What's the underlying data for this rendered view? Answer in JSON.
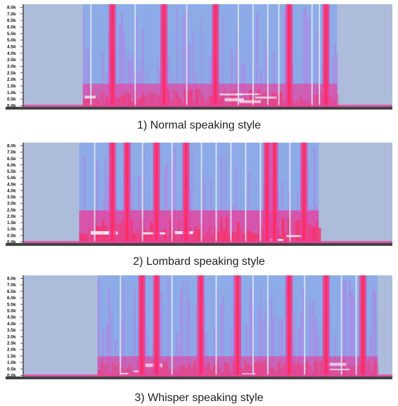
{
  "chart_data": [
    {
      "type": "heatmap",
      "title": "1) Normal speaking style",
      "y_ticks": [
        "8.0k",
        "7.0k",
        "6.5k",
        "6.0k",
        "5.5k",
        "5.0k",
        "4.5k",
        "4.0k",
        "3.5k",
        "3.0k",
        "2.5k",
        "2.0k",
        "1.5k",
        "1.0k",
        "0.5k",
        "0.0k"
      ],
      "ylim": [
        0,
        8000
      ],
      "y_unit": "Hz",
      "time_range": [
        0,
        1
      ],
      "speech_span": [
        0.16,
        0.85
      ],
      "bursts": [
        0.24,
        0.38,
        0.52,
        0.72,
        0.82
      ],
      "gaps": [
        0.18,
        0.3,
        0.44,
        0.58,
        0.62,
        0.66,
        0.69,
        0.78,
        0.8
      ],
      "low_band_height": 1800,
      "intensity": 0.55,
      "colormap": [
        "#aebcdc",
        "#8aa8e8",
        "#b37fe6",
        "#e8409c",
        "#ff2a5a",
        "#ffffff"
      ]
    },
    {
      "type": "heatmap",
      "title": "2) Lombard speaking style",
      "y_ticks": [
        "8.0k",
        "7.0k",
        "6.5k",
        "6.0k",
        "5.5k",
        "5.0k",
        "4.5k",
        "4.0k",
        "3.5k",
        "3.0k",
        "2.5k",
        "2.0k",
        "1.5k",
        "1.0k",
        "0.5k",
        "0.0k"
      ],
      "ylim": [
        0,
        8000
      ],
      "y_unit": "Hz",
      "time_range": [
        0,
        1
      ],
      "speech_span": [
        0.15,
        0.8
      ],
      "bursts": [
        0.24,
        0.28,
        0.36,
        0.44,
        0.66,
        0.68,
        0.76
      ],
      "gaps": [
        0.19,
        0.32,
        0.4,
        0.48,
        0.52,
        0.56,
        0.6,
        0.64,
        0.72
      ],
      "low_band_height": 2600,
      "intensity": 0.85,
      "colormap": [
        "#aebcdc",
        "#8aa8e8",
        "#b37fe6",
        "#e8409c",
        "#ff2a5a",
        "#ffffff"
      ]
    },
    {
      "type": "heatmap",
      "title": "3) Whisper speaking style",
      "y_ticks": [
        "8.0k",
        "7.0k",
        "6.5k",
        "6.0k",
        "5.5k",
        "5.0k",
        "4.5k",
        "4.0k",
        "3.5k",
        "3.0k",
        "2.5k",
        "2.0k",
        "1.5k",
        "1.0k",
        "0.5k",
        "0.0k"
      ],
      "ylim": [
        0,
        8000
      ],
      "y_unit": "Hz",
      "time_range": [
        0,
        1
      ],
      "speech_span": [
        0.2,
        0.96
      ],
      "bursts": [
        0.32,
        0.36,
        0.48,
        0.58,
        0.72,
        0.82,
        0.92
      ],
      "gaps": [
        0.26,
        0.4,
        0.52,
        0.62,
        0.66,
        0.76,
        0.86,
        0.9
      ],
      "low_band_height": 1600,
      "intensity": 0.45,
      "colormap": [
        "#aebcdc",
        "#8aa8e8",
        "#b37fe6",
        "#e8409c",
        "#ff2a5a",
        "#ffffff"
      ]
    }
  ]
}
